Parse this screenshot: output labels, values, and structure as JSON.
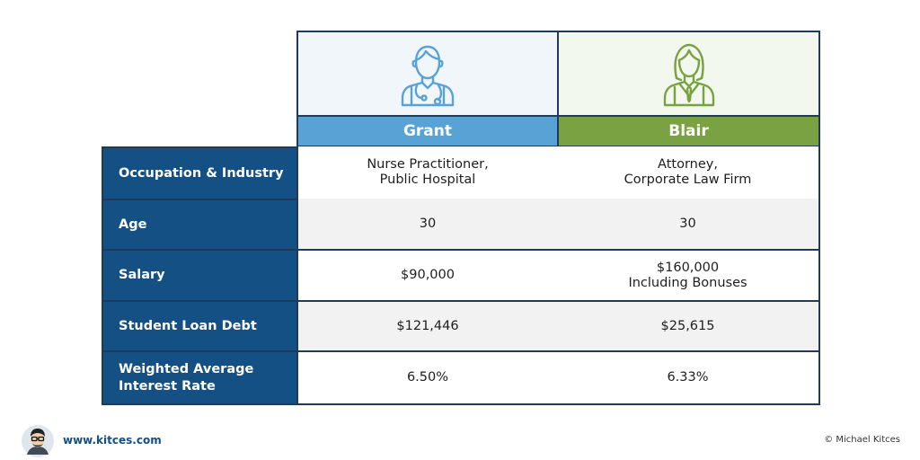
{
  "columns": [
    {
      "name": "Grant",
      "icon": "male-nurse-icon",
      "color": "#58a2d6"
    },
    {
      "name": "Blair",
      "icon": "female-attorney-icon",
      "color": "#7aa142"
    }
  ],
  "rows": [
    {
      "label": "Occupation & Industry",
      "grant": [
        "Nurse Practitioner,",
        "Public Hospital"
      ],
      "blair": [
        "Attorney,",
        "Corporate Law Firm"
      ]
    },
    {
      "label": "Age",
      "grant": [
        "30"
      ],
      "blair": [
        "30"
      ]
    },
    {
      "label": "Salary",
      "grant": [
        "$90,000"
      ],
      "blair": [
        "$160,000",
        "Including Bonuses"
      ]
    },
    {
      "label": "Student Loan Debt",
      "grant": [
        "$121,446"
      ],
      "blair": [
        "$25,615"
      ]
    },
    {
      "label_lines": [
        "Weighted Average",
        "Interest Rate"
      ],
      "grant": [
        "6.50%"
      ],
      "blair": [
        "6.33%"
      ]
    }
  ],
  "footer": {
    "url": "www.kitces.com",
    "copyright": "© Michael Kitces"
  },
  "colors": {
    "label_bg": "#155085",
    "border": "#1f3b59"
  }
}
